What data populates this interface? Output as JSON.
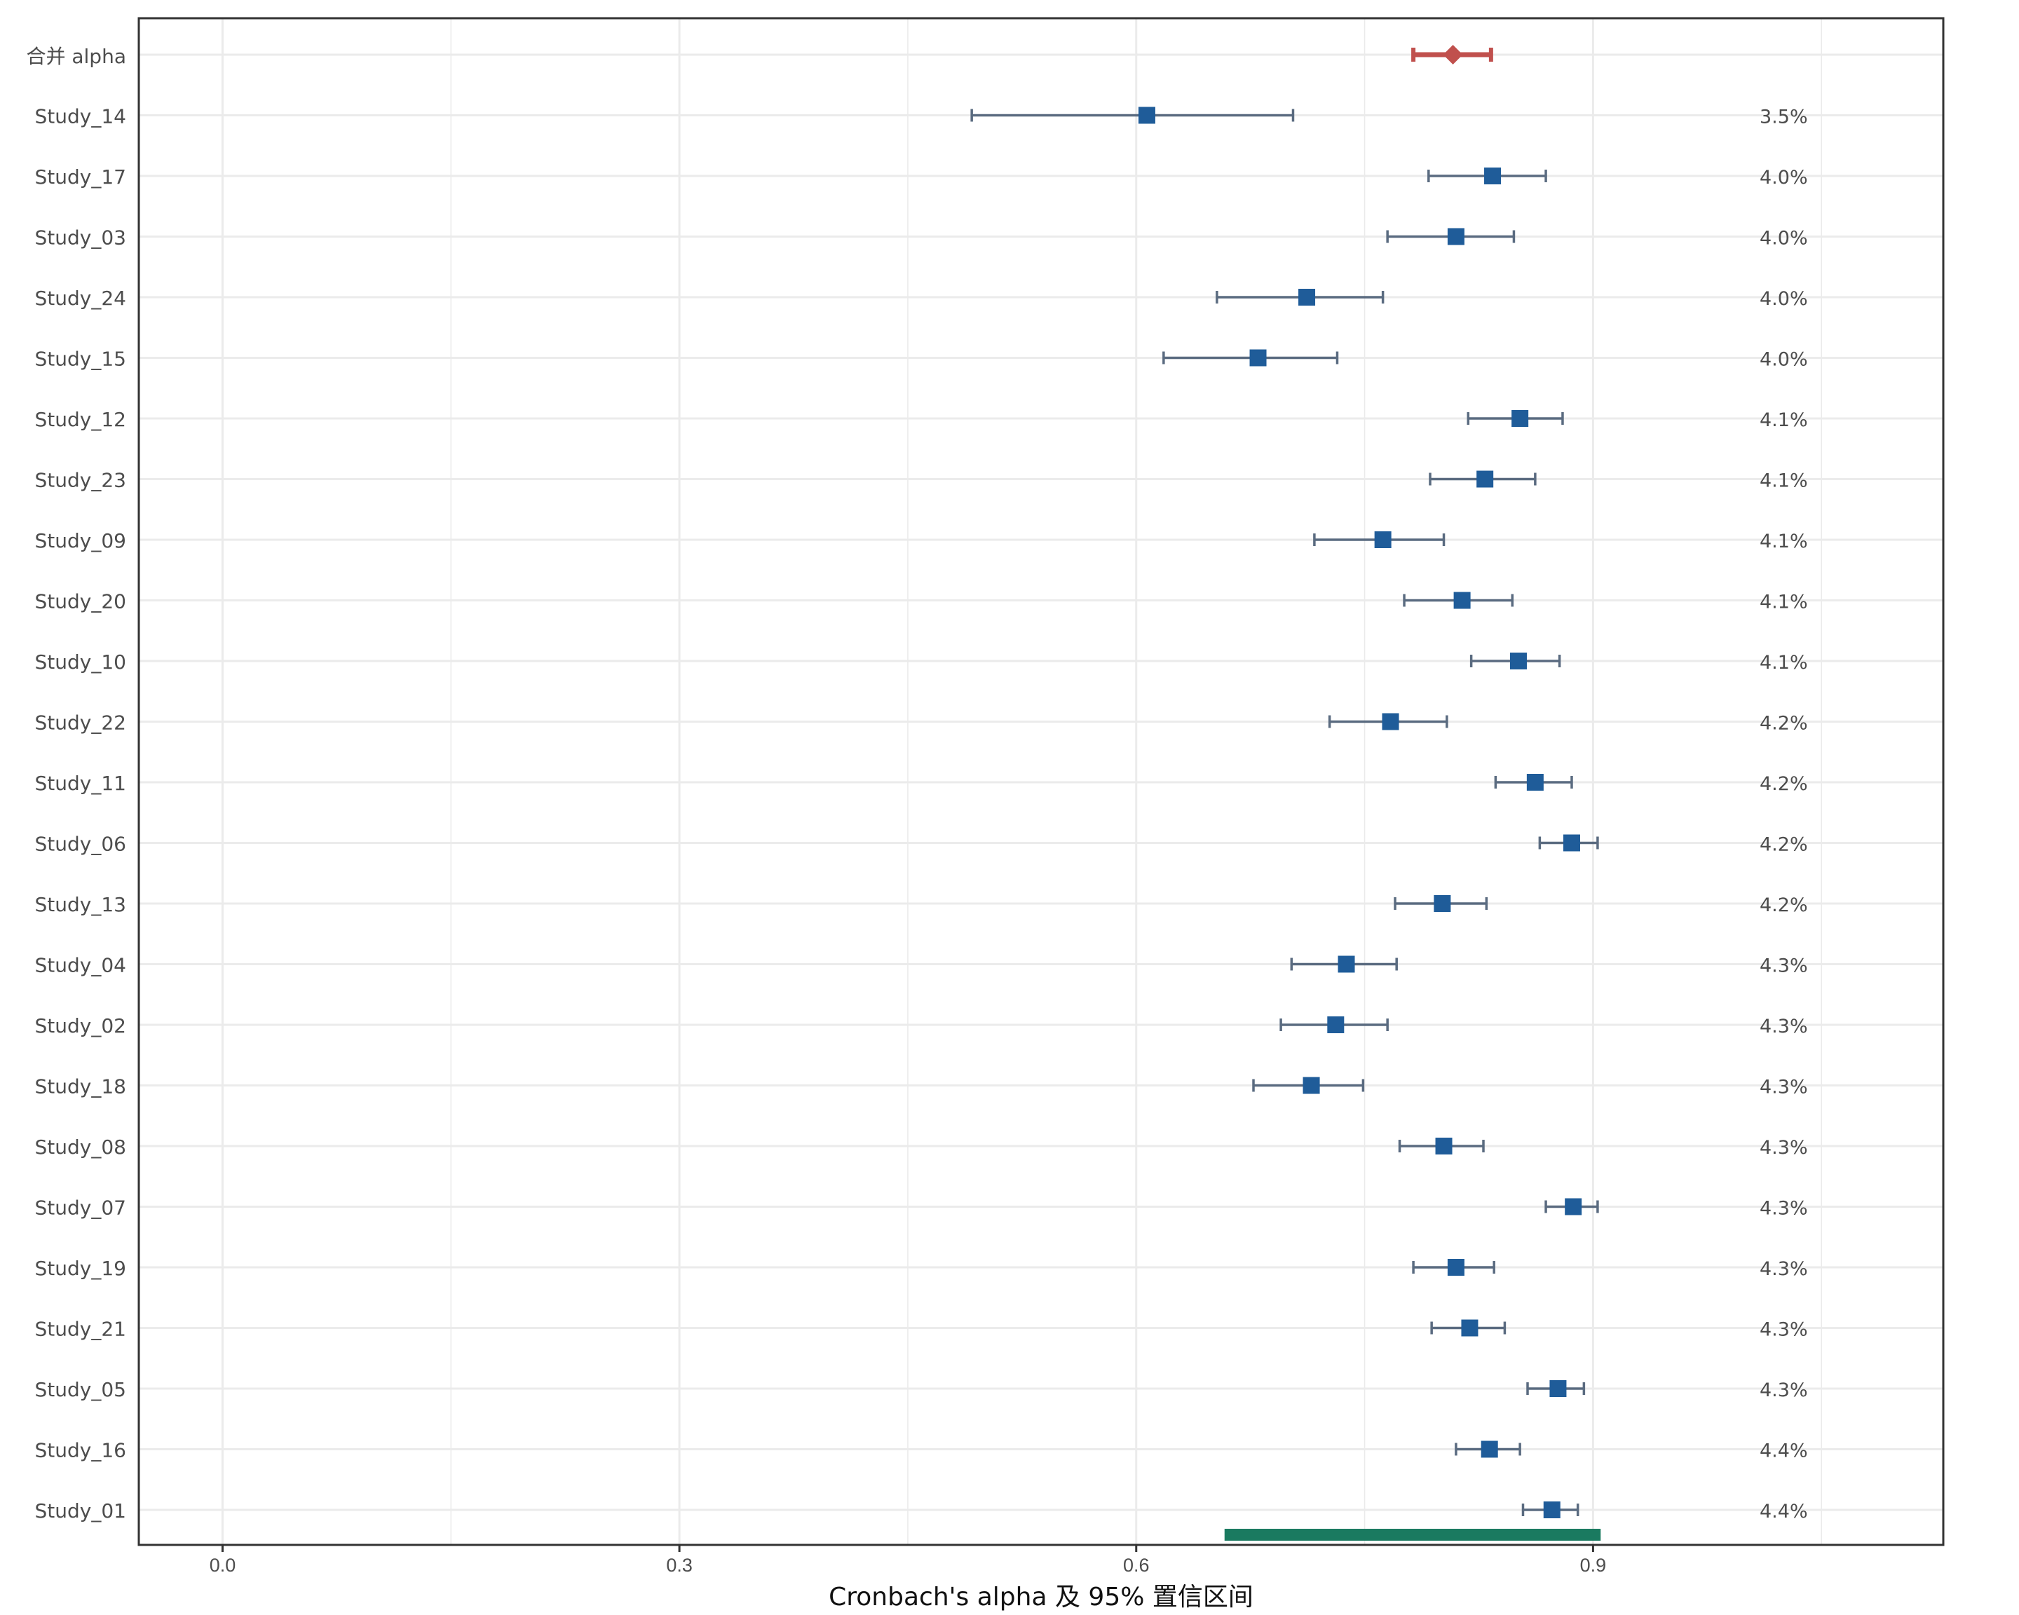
{
  "chart_data": {
    "type": "forest",
    "xlabel": "Cronbach's alpha 及 95% 置信区间",
    "xlim": [
      -0.055,
      1.13
    ],
    "xticks": [
      0.0,
      0.3,
      0.6,
      0.9
    ],
    "xtick_labels": [
      "0.0",
      "0.3",
      "0.6",
      "0.9"
    ],
    "grid": true,
    "pooled": {
      "label": "合并 alpha",
      "estimate": 0.808,
      "lower": 0.782,
      "upper": 0.833,
      "color": "#c0504d"
    },
    "prediction_interval": {
      "lower": 0.658,
      "upper": 0.905,
      "color": "#1a7a60"
    },
    "study_color": "#1f5c99",
    "ci_color": "#5a6b80",
    "studies": [
      {
        "name": "Study_14",
        "alpha": 0.607,
        "lower": 0.492,
        "upper": 0.703,
        "weight": "3.5%"
      },
      {
        "name": "Study_17",
        "alpha": 0.834,
        "lower": 0.792,
        "upper": 0.869,
        "weight": "4.0%"
      },
      {
        "name": "Study_03",
        "alpha": 0.81,
        "lower": 0.765,
        "upper": 0.848,
        "weight": "4.0%"
      },
      {
        "name": "Study_24",
        "alpha": 0.712,
        "lower": 0.653,
        "upper": 0.762,
        "weight": "4.0%"
      },
      {
        "name": "Study_15",
        "alpha": 0.68,
        "lower": 0.618,
        "upper": 0.732,
        "weight": "4.0%"
      },
      {
        "name": "Study_12",
        "alpha": 0.852,
        "lower": 0.818,
        "upper": 0.88,
        "weight": "4.1%"
      },
      {
        "name": "Study_23",
        "alpha": 0.829,
        "lower": 0.793,
        "upper": 0.862,
        "weight": "4.1%"
      },
      {
        "name": "Study_09",
        "alpha": 0.762,
        "lower": 0.717,
        "upper": 0.802,
        "weight": "4.1%"
      },
      {
        "name": "Study_20",
        "alpha": 0.814,
        "lower": 0.776,
        "upper": 0.847,
        "weight": "4.1%"
      },
      {
        "name": "Study_10",
        "alpha": 0.851,
        "lower": 0.82,
        "upper": 0.878,
        "weight": "4.1%"
      },
      {
        "name": "Study_22",
        "alpha": 0.767,
        "lower": 0.727,
        "upper": 0.804,
        "weight": "4.2%"
      },
      {
        "name": "Study_11",
        "alpha": 0.862,
        "lower": 0.836,
        "upper": 0.886,
        "weight": "4.2%"
      },
      {
        "name": "Study_06",
        "alpha": 0.886,
        "lower": 0.865,
        "upper": 0.903,
        "weight": "4.2%"
      },
      {
        "name": "Study_13",
        "alpha": 0.801,
        "lower": 0.77,
        "upper": 0.83,
        "weight": "4.2%"
      },
      {
        "name": "Study_04",
        "alpha": 0.738,
        "lower": 0.702,
        "upper": 0.771,
        "weight": "4.3%"
      },
      {
        "name": "Study_02",
        "alpha": 0.731,
        "lower": 0.695,
        "upper": 0.765,
        "weight": "4.3%"
      },
      {
        "name": "Study_18",
        "alpha": 0.715,
        "lower": 0.677,
        "upper": 0.749,
        "weight": "4.3%"
      },
      {
        "name": "Study_08",
        "alpha": 0.802,
        "lower": 0.773,
        "upper": 0.828,
        "weight": "4.3%"
      },
      {
        "name": "Study_07",
        "alpha": 0.887,
        "lower": 0.869,
        "upper": 0.903,
        "weight": "4.3%"
      },
      {
        "name": "Study_19",
        "alpha": 0.81,
        "lower": 0.782,
        "upper": 0.835,
        "weight": "4.3%"
      },
      {
        "name": "Study_21",
        "alpha": 0.819,
        "lower": 0.794,
        "upper": 0.842,
        "weight": "4.3%"
      },
      {
        "name": "Study_05",
        "alpha": 0.877,
        "lower": 0.857,
        "upper": 0.894,
        "weight": "4.3%"
      },
      {
        "name": "Study_16",
        "alpha": 0.832,
        "lower": 0.81,
        "upper": 0.852,
        "weight": "4.4%"
      },
      {
        "name": "Study_01",
        "alpha": 0.873,
        "lower": 0.854,
        "upper": 0.89,
        "weight": "4.4%"
      }
    ]
  }
}
